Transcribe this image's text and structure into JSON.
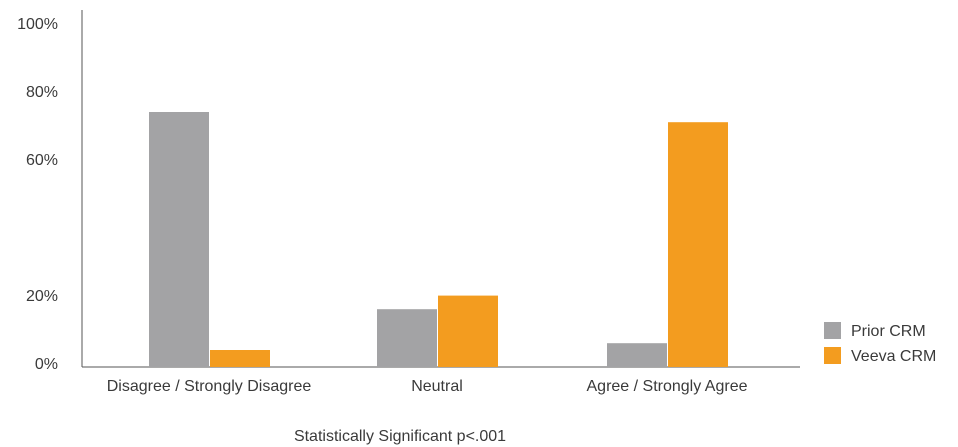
{
  "chart_data": {
    "type": "bar",
    "categories": [
      "Disagree / Strongly Disagree",
      "Neutral",
      "Agree / Strongly Agree"
    ],
    "series": [
      {
        "name": "Prior CRM",
        "values": [
          75,
          17,
          7
        ],
        "color": "#a3a3a5"
      },
      {
        "name": "Veeva CRM",
        "values": [
          5,
          21,
          72
        ],
        "color": "#f39c1f"
      }
    ],
    "y_ticks": [
      {
        "value": 0,
        "label": "0%"
      },
      {
        "value": 20,
        "label": "20%"
      },
      {
        "value": 60,
        "label": "60%"
      },
      {
        "value": 80,
        "label": "80%"
      },
      {
        "value": 100,
        "label": "100%"
      }
    ],
    "ylim": [
      0,
      100
    ],
    "grid": false,
    "legend": "bottom-right",
    "footnote": "Statistically Significant p<.001"
  }
}
